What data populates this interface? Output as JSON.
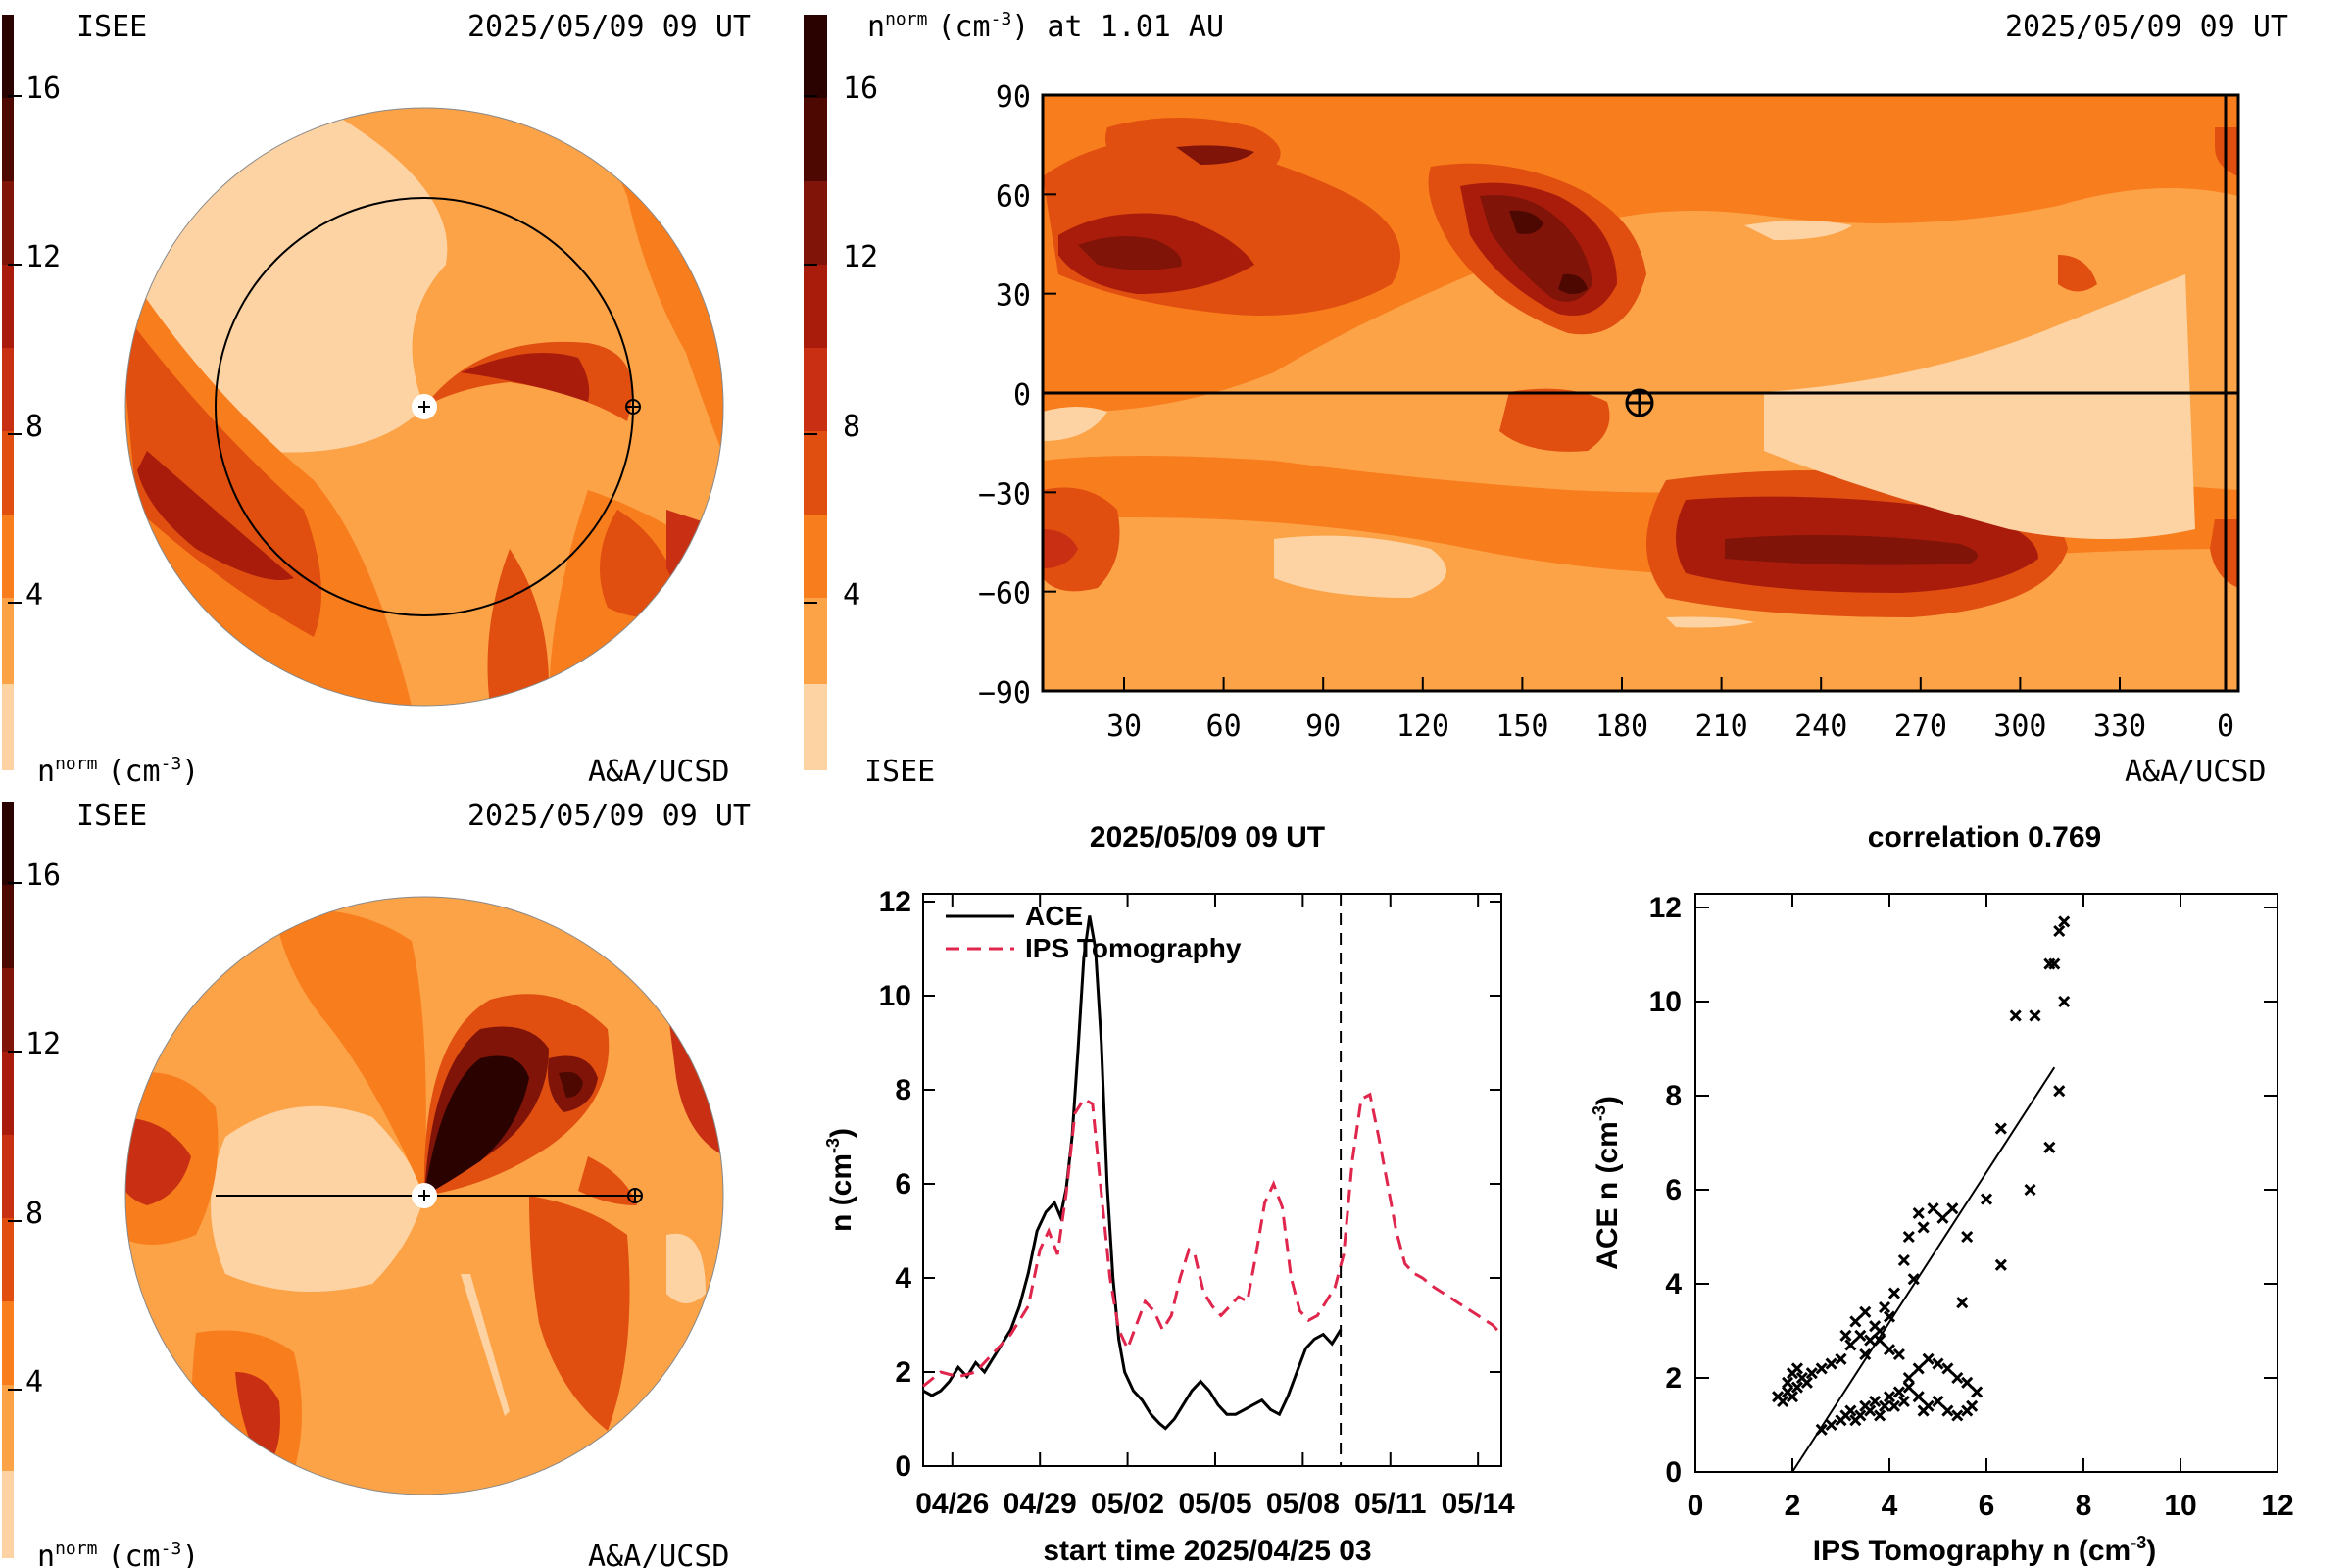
{
  "palette": [
    "#fdd3a4",
    "#fca348",
    "#f87d1d",
    "#e04e10",
    "#c92f12",
    "#a91c0c",
    "#801408",
    "#4e0802",
    "#2a0300"
  ],
  "colorbar": {
    "ticks": [
      {
        "label": "16"
      },
      {
        "label": "12"
      },
      {
        "label": "8"
      },
      {
        "label": "4"
      }
    ]
  },
  "panel_top_left": {
    "org": "ISEE",
    "time": "2025/05/09 09 UT",
    "units": "n",
    "units_sup": "norm",
    "units_rest": "(cm",
    "units_exp": "-3",
    "units_end": ")",
    "credit": "A&A/UCSD"
  },
  "panel_bottom_left": {
    "org": "ISEE",
    "time": "2025/05/09 09 UT",
    "units": "n",
    "units_sup": "norm",
    "units_rest": "(cm",
    "units_exp": "-3",
    "units_end": ")",
    "credit": "A&A/UCSD"
  },
  "panel_map": {
    "title_n": "n",
    "title_sup": "norm",
    "title_rest": "(cm",
    "title_exp": "-3",
    "title_end": ") at 1.01 AU",
    "time": "2025/05/09 09 UT",
    "org": "ISEE",
    "credit": "A&A/UCSD",
    "x_ticks": [
      "30",
      "60",
      "90",
      "120",
      "150",
      "180",
      "210",
      "240",
      "270",
      "300",
      "330",
      "0"
    ],
    "y_ticks": [
      "90",
      "60",
      "30",
      "0",
      "−30",
      "−60",
      "−90"
    ]
  },
  "chart_data": [
    {
      "type": "line",
      "title": "2025/05/09 09 UT",
      "xlabel": "start time 2025/04/25 03",
      "ylabel": "n (cm",
      "ylabel_exp": "-3",
      "ylabel_end": ")",
      "x_ticks": [
        "04/26",
        "04/29",
        "05/02",
        "05/05",
        "05/08",
        "05/11",
        "05/14"
      ],
      "x_tick_days": [
        1,
        4,
        7,
        10,
        13,
        16,
        19
      ],
      "xlim": [
        0,
        19.8
      ],
      "ylim": [
        0,
        12
      ],
      "y_ticks": [
        "0",
        "2",
        "4",
        "6",
        "8",
        "10",
        "12"
      ],
      "current_time_day": 14.3,
      "series": [
        {
          "name": "ACE",
          "color": "#000000",
          "dash": "solid",
          "points": [
            [
              0.0,
              1.6
            ],
            [
              0.3,
              1.5
            ],
            [
              0.6,
              1.6
            ],
            [
              0.9,
              1.8
            ],
            [
              1.2,
              2.1
            ],
            [
              1.5,
              1.9
            ],
            [
              1.8,
              2.2
            ],
            [
              2.1,
              2.0
            ],
            [
              2.4,
              2.3
            ],
            [
              2.7,
              2.6
            ],
            [
              3.0,
              2.9
            ],
            [
              3.3,
              3.4
            ],
            [
              3.6,
              4.1
            ],
            [
              3.9,
              5.0
            ],
            [
              4.2,
              5.4
            ],
            [
              4.5,
              5.6
            ],
            [
              4.7,
              5.3
            ],
            [
              4.9,
              5.9
            ],
            [
              5.1,
              7.0
            ],
            [
              5.3,
              8.8
            ],
            [
              5.5,
              10.8
            ],
            [
              5.7,
              11.7
            ],
            [
              5.9,
              11.0
            ],
            [
              6.1,
              9.0
            ],
            [
              6.3,
              6.0
            ],
            [
              6.5,
              4.0
            ],
            [
              6.7,
              2.7
            ],
            [
              6.9,
              2.0
            ],
            [
              7.2,
              1.6
            ],
            [
              7.5,
              1.4
            ],
            [
              7.8,
              1.1
            ],
            [
              8.1,
              0.9
            ],
            [
              8.3,
              0.8
            ],
            [
              8.6,
              1.0
            ],
            [
              8.9,
              1.3
            ],
            [
              9.2,
              1.6
            ],
            [
              9.5,
              1.8
            ],
            [
              9.8,
              1.6
            ],
            [
              10.1,
              1.3
            ],
            [
              10.4,
              1.1
            ],
            [
              10.7,
              1.1
            ],
            [
              11.0,
              1.2
            ],
            [
              11.3,
              1.3
            ],
            [
              11.6,
              1.4
            ],
            [
              11.9,
              1.2
            ],
            [
              12.2,
              1.1
            ],
            [
              12.5,
              1.5
            ],
            [
              12.8,
              2.0
            ],
            [
              13.1,
              2.5
            ],
            [
              13.4,
              2.7
            ],
            [
              13.7,
              2.8
            ],
            [
              14.0,
              2.6
            ],
            [
              14.3,
              2.9
            ]
          ]
        },
        {
          "name": "IPS Tomography",
          "color": "#e0264c",
          "dash": "dashed",
          "points": [
            [
              0.0,
              1.7
            ],
            [
              0.6,
              2.0
            ],
            [
              1.2,
              1.9
            ],
            [
              1.8,
              2.0
            ],
            [
              2.4,
              2.4
            ],
            [
              3.0,
              2.8
            ],
            [
              3.6,
              3.4
            ],
            [
              4.0,
              4.6
            ],
            [
              4.3,
              5.0
            ],
            [
              4.6,
              4.5
            ],
            [
              4.9,
              5.8
            ],
            [
              5.2,
              7.5
            ],
            [
              5.5,
              7.8
            ],
            [
              5.8,
              7.7
            ],
            [
              6.1,
              5.8
            ],
            [
              6.4,
              4.0
            ],
            [
              6.7,
              2.9
            ],
            [
              7.0,
              2.5
            ],
            [
              7.3,
              3.0
            ],
            [
              7.6,
              3.5
            ],
            [
              7.9,
              3.3
            ],
            [
              8.2,
              2.9
            ],
            [
              8.5,
              3.2
            ],
            [
              8.8,
              4.0
            ],
            [
              9.1,
              4.6
            ],
            [
              9.3,
              4.5
            ],
            [
              9.6,
              3.7
            ],
            [
              9.9,
              3.4
            ],
            [
              10.2,
              3.2
            ],
            [
              10.5,
              3.4
            ],
            [
              10.8,
              3.6
            ],
            [
              11.1,
              3.5
            ],
            [
              11.4,
              4.5
            ],
            [
              11.7,
              5.6
            ],
            [
              12.0,
              6.0
            ],
            [
              12.3,
              5.5
            ],
            [
              12.6,
              4.0
            ],
            [
              12.9,
              3.3
            ],
            [
              13.2,
              3.1
            ],
            [
              13.5,
              3.2
            ],
            [
              13.8,
              3.5
            ],
            [
              14.1,
              3.8
            ],
            [
              14.4,
              4.5
            ],
            [
              14.7,
              6.5
            ],
            [
              15.0,
              7.8
            ],
            [
              15.3,
              7.9
            ],
            [
              15.6,
              7.0
            ],
            [
              15.9,
              6.0
            ],
            [
              16.2,
              5.0
            ],
            [
              16.5,
              4.3
            ],
            [
              16.8,
              4.1
            ],
            [
              17.1,
              4.0
            ],
            [
              17.5,
              3.8
            ],
            [
              18.0,
              3.6
            ],
            [
              18.5,
              3.4
            ],
            [
              19.0,
              3.2
            ],
            [
              19.5,
              3.0
            ],
            [
              19.8,
              2.8
            ]
          ]
        }
      ]
    },
    {
      "type": "scatter",
      "title": "correlation 0.769",
      "xlabel": "IPS Tomography n (cm",
      "xlabel_exp": "-3",
      "xlabel_end": ")",
      "ylabel": "ACE n (cm",
      "ylabel_exp": "-3",
      "ylabel_end": ")",
      "xlim": [
        0,
        12
      ],
      "ylim": [
        0,
        12
      ],
      "x_ticks": [
        "0",
        "2",
        "4",
        "6",
        "8",
        "10",
        "12"
      ],
      "y_ticks": [
        "0",
        "2",
        "4",
        "6",
        "8",
        "10",
        "12"
      ],
      "fit_line": [
        [
          2.0,
          0.0
        ],
        [
          7.4,
          8.6
        ]
      ],
      "points": [
        [
          1.7,
          1.6
        ],
        [
          1.8,
          1.5
        ],
        [
          1.9,
          1.7
        ],
        [
          2.0,
          1.6
        ],
        [
          2.1,
          1.8
        ],
        [
          2.0,
          2.1
        ],
        [
          1.9,
          1.9
        ],
        [
          2.1,
          2.2
        ],
        [
          2.2,
          2.0
        ],
        [
          2.3,
          1.9
        ],
        [
          2.4,
          2.1
        ],
        [
          2.6,
          2.2
        ],
        [
          2.8,
          2.3
        ],
        [
          3.0,
          2.4
        ],
        [
          3.2,
          2.7
        ],
        [
          3.4,
          2.9
        ],
        [
          3.6,
          2.8
        ],
        [
          3.8,
          3.0
        ],
        [
          3.5,
          3.4
        ],
        [
          3.3,
          3.2
        ],
        [
          3.7,
          3.1
        ],
        [
          4.0,
          3.3
        ],
        [
          3.9,
          3.5
        ],
        [
          4.1,
          3.8
        ],
        [
          4.3,
          4.5
        ],
        [
          4.4,
          5.0
        ],
        [
          4.6,
          5.5
        ],
        [
          4.7,
          5.2
        ],
        [
          4.9,
          5.6
        ],
        [
          5.1,
          5.4
        ],
        [
          5.3,
          5.6
        ],
        [
          5.6,
          5.0
        ],
        [
          6.0,
          5.8
        ],
        [
          6.3,
          4.4
        ],
        [
          4.5,
          4.1
        ],
        [
          5.5,
          3.6
        ],
        [
          6.3,
          7.3
        ],
        [
          6.9,
          6.0
        ],
        [
          7.3,
          6.9
        ],
        [
          7.5,
          8.1
        ],
        [
          7.0,
          9.7
        ],
        [
          7.6,
          10.0
        ],
        [
          6.6,
          9.7
        ],
        [
          7.3,
          10.8
        ],
        [
          7.4,
          10.8
        ],
        [
          7.6,
          11.7
        ],
        [
          7.5,
          11.5
        ],
        [
          2.6,
          0.9
        ],
        [
          2.8,
          1.0
        ],
        [
          3.0,
          1.1
        ],
        [
          3.1,
          1.2
        ],
        [
          3.2,
          1.3
        ],
        [
          3.3,
          1.1
        ],
        [
          3.4,
          1.2
        ],
        [
          3.5,
          1.4
        ],
        [
          3.6,
          1.3
        ],
        [
          3.7,
          1.5
        ],
        [
          3.8,
          1.2
        ],
        [
          3.9,
          1.4
        ],
        [
          4.0,
          1.6
        ],
        [
          4.1,
          1.4
        ],
        [
          4.2,
          1.7
        ],
        [
          4.3,
          1.5
        ],
        [
          4.4,
          1.8
        ],
        [
          4.6,
          1.6
        ],
        [
          4.7,
          1.3
        ],
        [
          4.8,
          1.4
        ],
        [
          5.0,
          1.5
        ],
        [
          5.2,
          1.3
        ],
        [
          5.4,
          1.2
        ],
        [
          5.6,
          1.3
        ],
        [
          5.7,
          1.4
        ],
        [
          5.8,
          1.7
        ],
        [
          5.6,
          1.9
        ],
        [
          5.4,
          2.0
        ],
        [
          5.2,
          2.2
        ],
        [
          5.0,
          2.3
        ],
        [
          4.8,
          2.4
        ],
        [
          4.6,
          2.2
        ],
        [
          4.4,
          2.0
        ],
        [
          4.2,
          2.5
        ],
        [
          4.0,
          2.6
        ],
        [
          3.8,
          2.8
        ],
        [
          3.5,
          2.5
        ],
        [
          3.1,
          2.9
        ]
      ]
    }
  ]
}
